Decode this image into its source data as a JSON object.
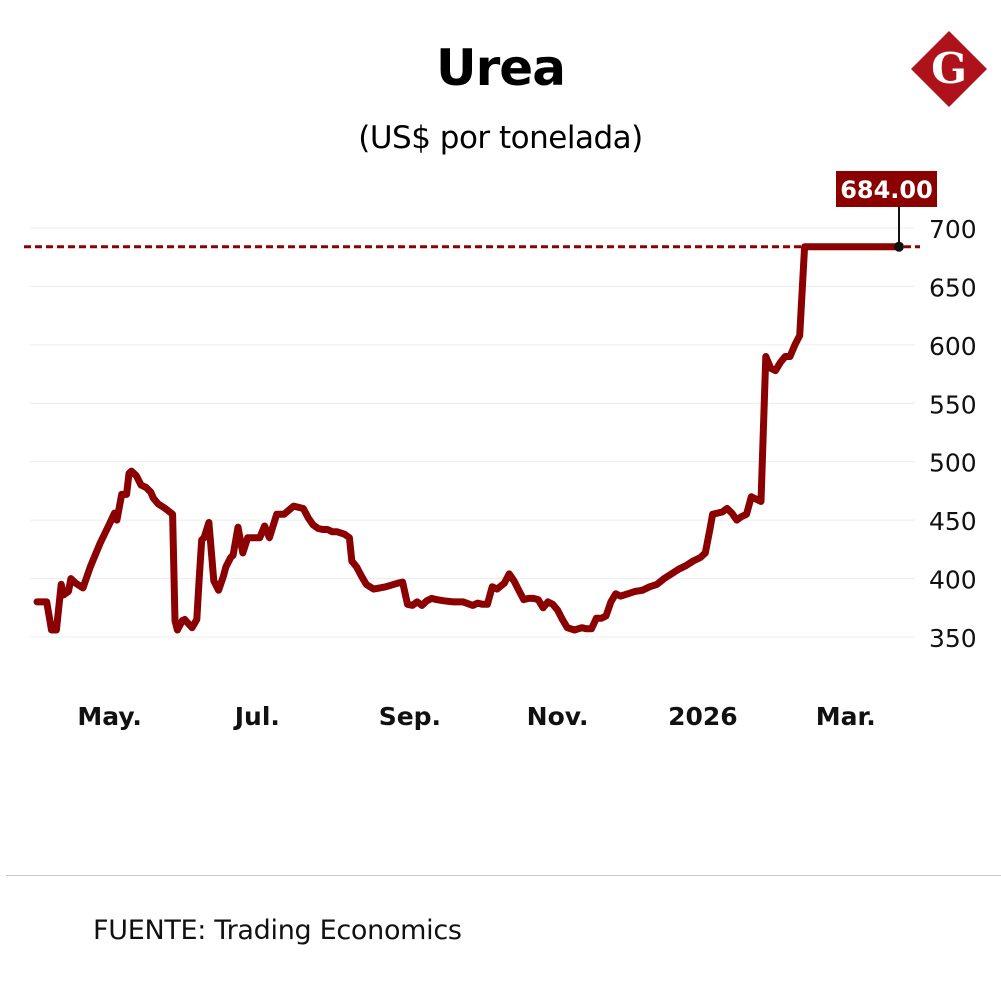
{
  "header": {
    "title": "Urea",
    "subtitle": "(US$ por tonelada)",
    "logo_letter": "G"
  },
  "footer": {
    "source": "FUENTE: Trading Economics"
  },
  "colors": {
    "series": "#8b0000",
    "logo": "#b0121b",
    "grid": "#ececec",
    "divider": "#c8c8c8"
  },
  "chart_data": {
    "type": "line",
    "title": "Urea",
    "subtitle": "(US$ por tonelada)",
    "xlabel": "",
    "ylabel": "",
    "ylim": [
      350,
      700
    ],
    "yticks": [
      350,
      400,
      450,
      500,
      550,
      600,
      650,
      700
    ],
    "y_axis_side": "right",
    "grid": true,
    "x_tick_labels": [
      "May.",
      "Jul.",
      "Sep.",
      "Nov.",
      "2026",
      "Mar."
    ],
    "x_tick_days": [
      30,
      91,
      154,
      215,
      275,
      334
    ],
    "x_range_days": [
      0,
      356
    ],
    "reference_line": {
      "value": 684.0,
      "label": "684.00",
      "style": "dashed"
    },
    "last_value_label": "684.00",
    "series": [
      {
        "x": [
          0,
          4,
          6,
          8,
          10,
          11,
          13,
          14,
          16,
          19,
          22,
          26,
          30,
          32,
          33,
          35,
          37,
          38,
          39,
          41,
          43,
          45,
          47,
          48,
          50,
          53,
          56,
          57,
          58,
          60,
          61,
          64,
          66,
          67,
          68,
          69,
          71,
          73,
          75,
          77,
          78,
          80,
          81,
          83,
          85,
          87,
          88,
          90,
          92,
          94,
          96,
          99,
          102,
          106,
          110,
          112,
          114,
          116,
          118,
          120,
          122,
          124,
          127,
          129,
          130,
          132,
          134,
          136,
          139,
          144,
          149,
          151,
          153,
          155,
          157,
          159,
          161,
          163,
          165,
          168,
          172,
          176,
          180,
          182,
          184,
          186,
          188,
          190,
          193,
          195,
          197,
          199,
          201,
          203,
          205,
          207,
          209,
          211,
          213,
          215,
          217,
          219,
          222,
          225,
          227,
          229,
          231,
          233,
          235,
          237,
          239,
          241,
          244,
          247,
          250,
          253,
          256,
          259,
          262,
          265,
          268,
          271,
          274,
          276,
          278,
          279,
          281,
          283,
          285,
          287,
          289,
          291,
          293,
          295,
          297,
          299,
          301,
          303,
          305,
          307,
          309,
          311,
          313,
          315,
          317,
          319,
          321,
          323,
          325,
          327,
          329,
          331,
          333,
          335,
          337,
          339,
          341,
          343,
          345,
          347,
          349,
          351,
          353,
          356
        ],
        "y": [
          380,
          380,
          356,
          356,
          395,
          386,
          389,
          400,
          396,
          392,
          410,
          430,
          447,
          456,
          450,
          472,
          472,
          490,
          492,
          488,
          480,
          478,
          474,
          469,
          464,
          460,
          455,
          364,
          356,
          364,
          365,
          358,
          365,
          400,
          433,
          435,
          448,
          398,
          390,
          402,
          410,
          418,
          420,
          444,
          422,
          435,
          435,
          435,
          435,
          445,
          435,
          455,
          455,
          462,
          460,
          452,
          446,
          443,
          442,
          442,
          440,
          440,
          438,
          435,
          415,
          410,
          402,
          395,
          391,
          393,
          396,
          397,
          378,
          377,
          380,
          377,
          381,
          383,
          382,
          381,
          380,
          380,
          377,
          379,
          378,
          378,
          393,
          391,
          396,
          404,
          398,
          390,
          382,
          383,
          383,
          382,
          375,
          380,
          378,
          373,
          365,
          358,
          356,
          358,
          357,
          357,
          366,
          366,
          368,
          380,
          387,
          385,
          387,
          389,
          390,
          393,
          395,
          400,
          404,
          408,
          411,
          415,
          418,
          422,
          443,
          455,
          456,
          457,
          460,
          456,
          450,
          453,
          455,
          470,
          468,
          466,
          590,
          580,
          578,
          585,
          590,
          590,
          600,
          608,
          684,
          684,
          684,
          684,
          684,
          684,
          684,
          684,
          684,
          684,
          684,
          684,
          684,
          684,
          684,
          684,
          684,
          684,
          684,
          684
        ]
      }
    ]
  }
}
